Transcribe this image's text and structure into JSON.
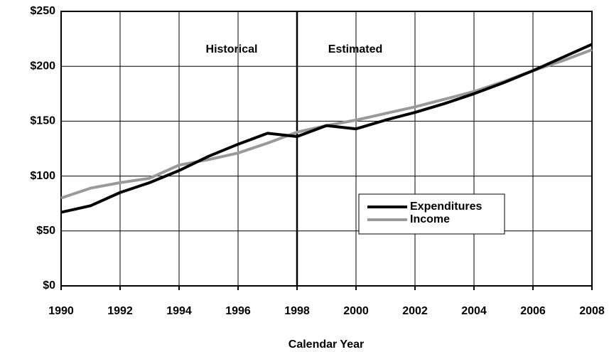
{
  "chart_data": {
    "type": "line",
    "x_label": "Calendar Year",
    "annotations": [
      "Historical",
      "Estimated"
    ],
    "divider": 1998,
    "x": [
      1990,
      1991,
      1992,
      1993,
      1994,
      1995,
      1996,
      1997,
      1998,
      1999,
      2000,
      2001,
      2002,
      2003,
      2004,
      2005,
      2006,
      2007,
      2008
    ],
    "series": [
      {
        "name": "Expenditures",
        "color": "#000000",
        "values": [
          67,
          73,
          85,
          94,
          105,
          118,
          129,
          139,
          136,
          146,
          143,
          151,
          158,
          166,
          175,
          185,
          196,
          208,
          220
        ]
      },
      {
        "name": "Income",
        "color": "#999999",
        "values": [
          80,
          89,
          94,
          98,
          110,
          115,
          121,
          130,
          140,
          146,
          151,
          157,
          163,
          170,
          177,
          186,
          196,
          205,
          215
        ]
      }
    ],
    "xlim": [
      1990,
      2008
    ],
    "xticks": [
      1990,
      1992,
      1994,
      1996,
      1998,
      2000,
      2002,
      2004,
      2006,
      2008
    ],
    "ylim": [
      0,
      250
    ],
    "yticks": [
      {
        "value": 0,
        "label": "$0"
      },
      {
        "value": 50,
        "label": "$50"
      },
      {
        "value": 100,
        "label": "$100"
      },
      {
        "value": 150,
        "label": "$150"
      },
      {
        "value": 200,
        "label": "$200"
      },
      {
        "value": 250,
        "label": "$250"
      }
    ],
    "grid": true,
    "legend": "center-right"
  }
}
